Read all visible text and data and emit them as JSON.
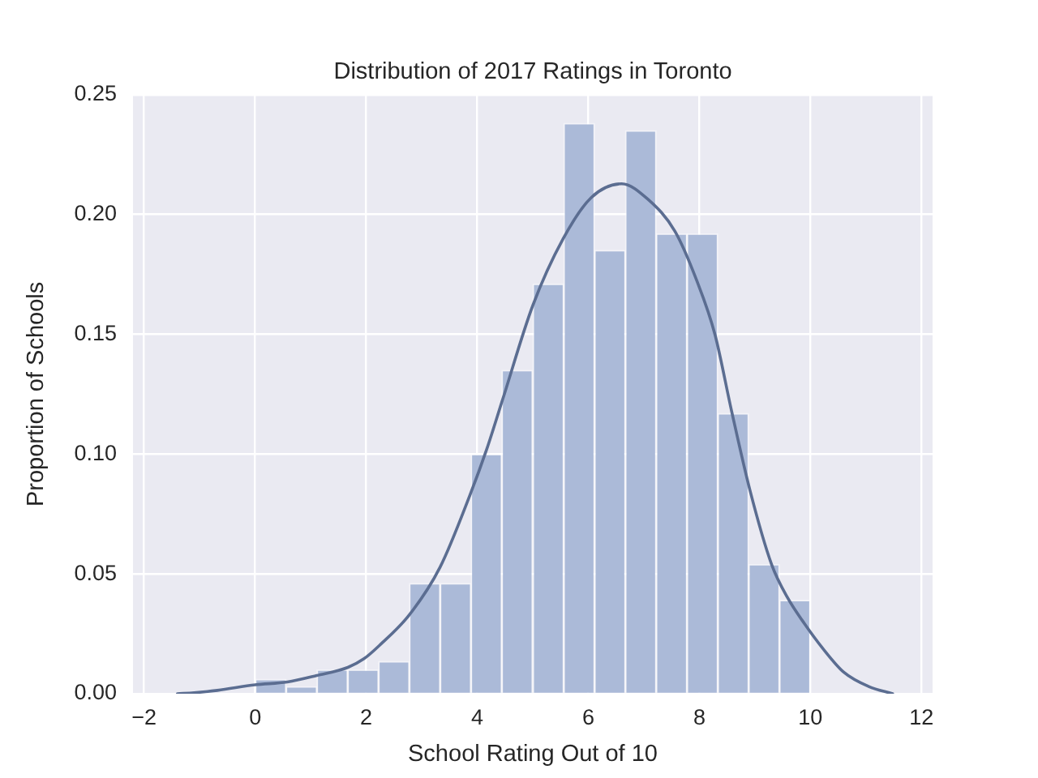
{
  "chart_data": {
    "type": "histogram",
    "title": "Distribution of 2017 Ratings in Toronto",
    "xlabel": "School Rating Out of 10",
    "ylabel": "Proportion of Schools",
    "bins": [
      0,
      0.56,
      1.11,
      1.67,
      2.22,
      2.78,
      3.33,
      3.89,
      4.44,
      5,
      5.56,
      6.11,
      6.67,
      7.22,
      7.78,
      8.33,
      8.89,
      9.44,
      10
    ],
    "series": [
      {
        "color": "#abbad8",
        "values": [
          0.006,
          0.003,
          0.01,
          0.01,
          0.0135,
          0.046,
          0.046,
          0.1,
          0.135,
          0.171,
          0.238,
          0.185,
          0.235,
          0.192,
          0.192,
          0.117,
          0.054,
          0.039
        ]
      },
      {
        "type": "line",
        "color": "#5b6d91",
        "x": [
          -1.4,
          -1.1,
          -0.68,
          0,
          0.58,
          1.11,
          1.67,
          1.96,
          2.25,
          2.78,
          3.33,
          3.87,
          4.17,
          4.46,
          5,
          5.55,
          6.05,
          6.6,
          7.07,
          7.56,
          7.95,
          8.28,
          8.58,
          8.91,
          9.3,
          9.59,
          9.9,
          10.22,
          10.6,
          11.05,
          11.48
        ],
        "values": [
          0,
          0.0004,
          0.0014,
          0.0037,
          0.0049,
          0.0076,
          0.011,
          0.0146,
          0.0204,
          0.033,
          0.0528,
          0.083,
          0.102,
          0.123,
          0.162,
          0.19,
          0.207,
          0.2128,
          0.2064,
          0.193,
          0.1726,
          0.15,
          0.118,
          0.085,
          0.054,
          0.04,
          0.029,
          0.019,
          0.009,
          0.003,
          0
        ]
      }
    ],
    "xlim": [
      -2.2,
      12.2
    ],
    "ylim": [
      0,
      0.25
    ],
    "xticks": [
      {
        "value": -2,
        "label": "−2"
      },
      0,
      2,
      4,
      6,
      8,
      10,
      12
    ],
    "yticks": [
      {
        "value": 0,
        "label": "0.00"
      },
      {
        "value": 0.05,
        "label": "0.05"
      },
      {
        "value": 0.1,
        "label": "0.10"
      },
      {
        "value": 0.15,
        "label": "0.15"
      },
      {
        "value": 0.2,
        "label": "0.20"
      },
      {
        "value": 0.25,
        "label": "0.25"
      }
    ],
    "grid": true
  }
}
